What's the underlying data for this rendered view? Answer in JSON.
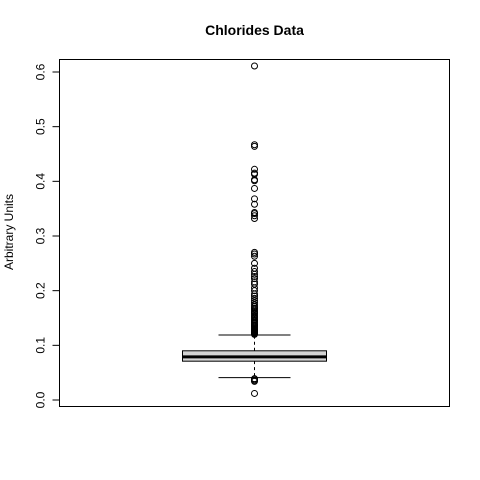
{
  "chart_data": {
    "type": "box",
    "title": "Chlorides Data",
    "xlabel": "",
    "ylabel": "Arbitrary Units",
    "ylim": [
      0.0,
      0.6
    ],
    "yticks": [
      0.0,
      0.1,
      0.2,
      0.3,
      0.4,
      0.5,
      0.6
    ],
    "ytick_labels": [
      "0.0",
      "0.1",
      "0.2",
      "0.3",
      "0.4",
      "0.5",
      "0.6"
    ],
    "box": {
      "min_whisker": 0.041,
      "q1": 0.071,
      "median": 0.079,
      "q3": 0.09,
      "max_whisker": 0.119,
      "fill": "#d3d3d3"
    },
    "outliers": [
      0.012,
      0.034,
      0.036,
      0.038,
      0.039,
      0.12,
      0.121,
      0.122,
      0.123,
      0.124,
      0.125,
      0.126,
      0.127,
      0.128,
      0.129,
      0.13,
      0.132,
      0.134,
      0.136,
      0.137,
      0.139,
      0.141,
      0.143,
      0.145,
      0.147,
      0.15,
      0.152,
      0.154,
      0.157,
      0.159,
      0.161,
      0.163,
      0.166,
      0.168,
      0.171,
      0.174,
      0.178,
      0.182,
      0.186,
      0.19,
      0.194,
      0.2,
      0.205,
      0.212,
      0.216,
      0.222,
      0.226,
      0.23,
      0.235,
      0.241,
      0.25,
      0.263,
      0.267,
      0.27,
      0.332,
      0.337,
      0.341,
      0.343,
      0.358,
      0.368,
      0.387,
      0.401,
      0.403,
      0.413,
      0.415,
      0.422,
      0.464,
      0.467,
      0.611
    ],
    "grid": false,
    "legend": "none"
  }
}
